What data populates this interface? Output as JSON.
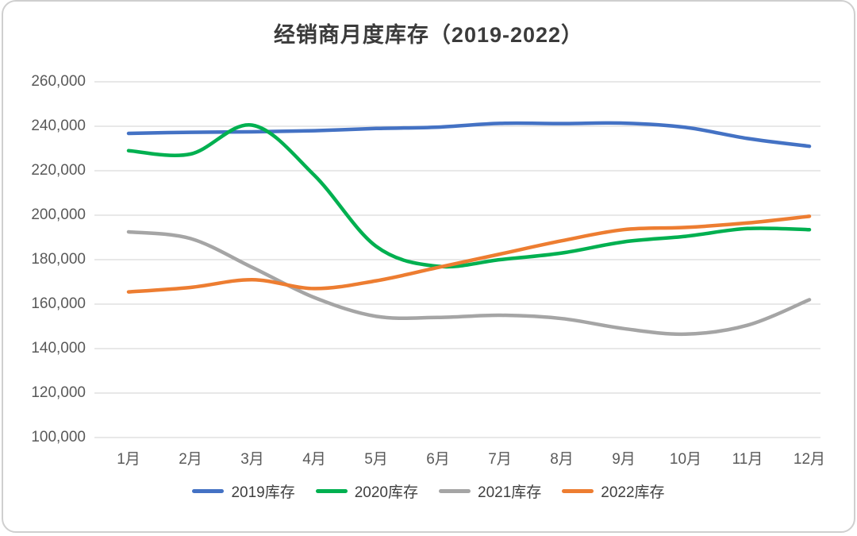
{
  "page": {
    "title": "经销商月度库存（2019-2022）"
  },
  "chart_data": {
    "type": "line",
    "title": "经销商月度库存（2019-2022）",
    "categories": [
      "1月",
      "2月",
      "3月",
      "4月",
      "5月",
      "6月",
      "7月",
      "8月",
      "9月",
      "10月",
      "11月",
      "12月"
    ],
    "series": [
      {
        "name": "2019库存",
        "color": "#4472C4",
        "values": [
          236800,
          237300,
          237500,
          238000,
          239000,
          239600,
          241300,
          241200,
          241400,
          239500,
          234500,
          231000
        ]
      },
      {
        "name": "2020库存",
        "color": "#00B050",
        "values": [
          229000,
          227500,
          240500,
          218000,
          186000,
          177000,
          180000,
          183000,
          188000,
          190500,
          194000,
          193500
        ]
      },
      {
        "name": "2021库存",
        "color": "#A5A5A5",
        "values": [
          192500,
          189500,
          176500,
          163000,
          154500,
          154000,
          155000,
          153500,
          149000,
          146500,
          150500,
          162000
        ]
      },
      {
        "name": "2022库存",
        "color": "#ED7D31",
        "values": [
          165500,
          167500,
          171000,
          167000,
          170500,
          176500,
          182500,
          188500,
          193500,
          194500,
          196500,
          199500
        ]
      }
    ],
    "xlabel": "",
    "ylabel": "",
    "ylim": [
      100000,
      260000
    ],
    "ytick_step": 20000,
    "grid": "horizontal-only",
    "legend_position": "bottom",
    "style": {
      "grid_color": "#D9D9D9",
      "axis_text_color": "#595959",
      "title_color": "#3b3b3b",
      "line_width": 4.5
    }
  }
}
